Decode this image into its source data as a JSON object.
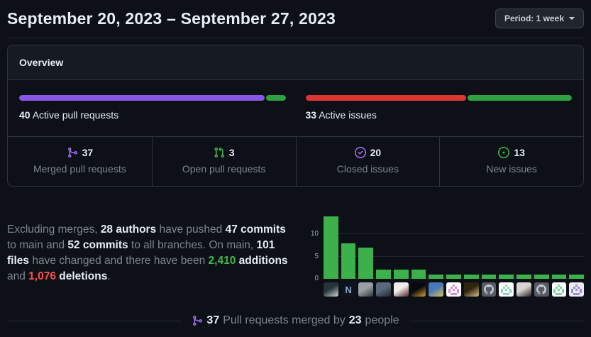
{
  "header": {
    "title": "September 20, 2023 – September 27, 2023",
    "period_button": "Period: 1 week"
  },
  "overview": {
    "tab_label": "Overview",
    "pull_requests_meter": {
      "count": "40",
      "label": "Active pull requests",
      "segments": [
        {
          "name": "merged-pull-requests",
          "value": 37,
          "color": "#8957e5"
        },
        {
          "name": "open-pull-requests",
          "value": 3,
          "color": "#2ea043"
        }
      ]
    },
    "issues_meter": {
      "count": "33",
      "label": "Active issues",
      "segments": [
        {
          "name": "closed-issues",
          "value": 20,
          "color": "#d93634"
        },
        {
          "name": "new-issues",
          "value": 13,
          "color": "#2ea043"
        }
      ]
    },
    "stats": [
      {
        "value": "37",
        "label": "Merged pull requests",
        "icon": "git-merge-icon",
        "icon_color": "#a371f7"
      },
      {
        "value": "3",
        "label": "Open pull requests",
        "icon": "git-pull-request-icon",
        "icon_color": "#3fb950"
      },
      {
        "value": "20",
        "label": "Closed issues",
        "icon": "issue-closed-icon",
        "icon_color": "#a371f7"
      },
      {
        "value": "13",
        "label": "New issues",
        "icon": "issue-opened-icon",
        "icon_color": "#3fb950"
      }
    ]
  },
  "summary": {
    "segments": [
      {
        "text": "Excluding merges, ",
        "style": "muted"
      },
      {
        "text": "28 authors",
        "style": "bold"
      },
      {
        "text": " have pushed ",
        "style": "muted"
      },
      {
        "text": "47 commits",
        "style": "bold"
      },
      {
        "text": " to main and ",
        "style": "muted"
      },
      {
        "text": "52 commits",
        "style": "bold"
      },
      {
        "text": " to all branches. On main, ",
        "style": "muted"
      },
      {
        "text": "101 files",
        "style": "bold"
      },
      {
        "text": " have changed and there have been ",
        "style": "muted"
      },
      {
        "text": "2,410",
        "style": "additions"
      },
      {
        "text": " ",
        "style": "muted"
      },
      {
        "text": "additions",
        "style": "bold"
      },
      {
        "text": " and ",
        "style": "muted"
      },
      {
        "text": "1,076",
        "style": "deletions"
      },
      {
        "text": " ",
        "style": "muted"
      },
      {
        "text": "deletions",
        "style": "bold"
      },
      {
        "text": ".",
        "style": "muted"
      }
    ]
  },
  "chart_data": {
    "type": "bar",
    "values": [
      14,
      8,
      7,
      2,
      2,
      2,
      1,
      1,
      1,
      1,
      1,
      1,
      1,
      1,
      1
    ],
    "yticks": [
      0,
      5,
      10
    ],
    "ylim": [
      0,
      15.5
    ],
    "bar_color": "#3cb14b",
    "xlabel": "",
    "ylabel": "",
    "legend": "none",
    "grid": "horizontal"
  },
  "avatars": [
    {
      "kind": "photo",
      "c1": "#24343a",
      "c2": "#cfd8d2"
    },
    {
      "kind": "logo",
      "c1": "#0e1320",
      "c2": "#8fa8c8",
      "text": "N"
    },
    {
      "kind": "photo",
      "c1": "#9aa0a6",
      "c2": "#31363b"
    },
    {
      "kind": "photo",
      "c1": "#5a6a7a",
      "c2": "#21262c"
    },
    {
      "kind": "photo",
      "c1": "#efedea",
      "c2": "#50262c"
    },
    {
      "kind": "photo",
      "c1": "#07090d",
      "c2": "#d89a3a"
    },
    {
      "kind": "photo",
      "c1": "#4a78b8",
      "c2": "#d8c455"
    },
    {
      "kind": "identicon",
      "c1": "#ffffff",
      "c2": "#d98fd0"
    },
    {
      "kind": "photo",
      "c1": "#2e2410",
      "c2": "#d8bd7f"
    },
    {
      "kind": "octocat",
      "c1": "#555c64",
      "c2": "#c6cbd1"
    },
    {
      "kind": "identicon",
      "c1": "#ffffff",
      "c2": "#8fd8b4"
    },
    {
      "kind": "photo",
      "c1": "#d8d5d2",
      "c2": "#262023"
    },
    {
      "kind": "octocat",
      "c1": "#555c64",
      "c2": "#c6cbd1"
    },
    {
      "kind": "identicon",
      "c1": "#ffffff",
      "c2": "#7fd4a4"
    },
    {
      "kind": "identicon",
      "c1": "#edeaf6",
      "c2": "#9a8fd0"
    }
  ],
  "merged_by": {
    "count": "37",
    "text_between": "Pull requests merged by",
    "people_count": "23",
    "text_after": "people",
    "icon_color": "#a371f7"
  }
}
